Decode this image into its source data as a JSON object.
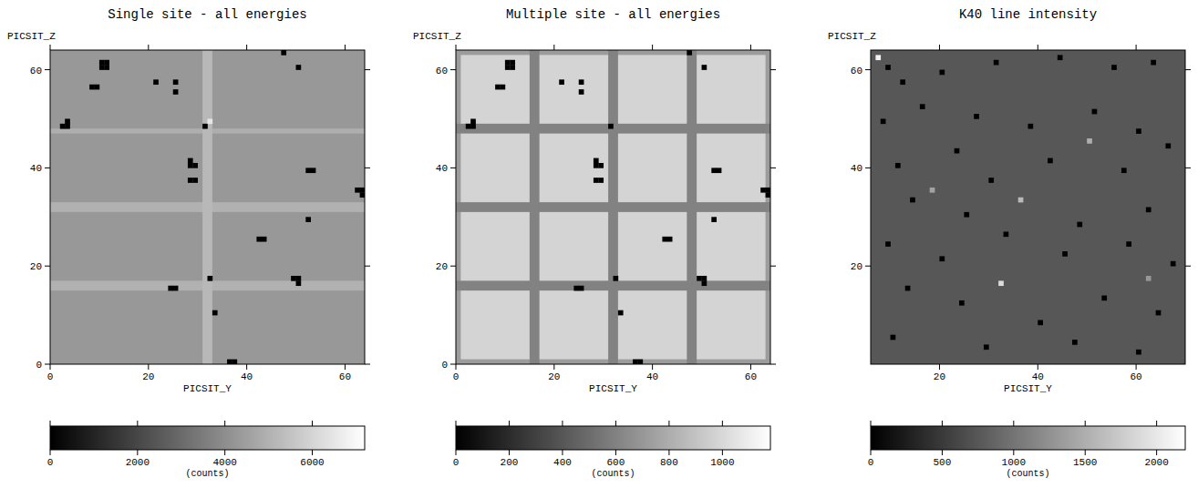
{
  "chart_data": [
    {
      "type": "heatmap",
      "title": "Single site - all energies",
      "x_label": "PICSIT_Y",
      "y_label": "PICSIT_Z",
      "xlim": [
        0,
        64
      ],
      "ylim": [
        0,
        64
      ],
      "xticks": [
        0,
        20,
        40,
        60
      ],
      "yticks": [
        0,
        20,
        40,
        60
      ],
      "color": "gray",
      "colorbar_range": [
        0,
        7200
      ],
      "colorbar_ticks": [
        0,
        2000,
        4000,
        6000
      ],
      "colorbar_label": "(counts)",
      "base": 4300,
      "bands": [
        {
          "axis": "z",
          "from": 15,
          "to": 17,
          "value": 5000
        },
        {
          "axis": "z",
          "from": 31,
          "to": 33,
          "value": 5000
        },
        {
          "axis": "z",
          "from": 47,
          "to": 48,
          "value": 4900
        },
        {
          "axis": "y",
          "from": 31,
          "to": 33,
          "value": 5200
        }
      ],
      "pixels": [
        [
          10,
          60,
          0
        ],
        [
          11,
          60,
          0
        ],
        [
          10,
          61,
          0
        ],
        [
          11,
          61,
          0
        ],
        [
          8,
          56,
          0
        ],
        [
          9,
          56,
          0
        ],
        [
          2,
          48,
          0
        ],
        [
          3,
          48,
          0
        ],
        [
          3,
          49,
          0
        ],
        [
          21,
          57,
          0
        ],
        [
          25,
          57,
          0
        ],
        [
          25,
          55,
          0
        ],
        [
          31,
          48,
          0
        ],
        [
          47,
          63,
          0
        ],
        [
          50,
          60,
          0
        ],
        [
          28,
          40,
          0
        ],
        [
          29,
          40,
          0
        ],
        [
          28,
          41,
          0
        ],
        [
          28,
          37,
          0
        ],
        [
          29,
          37,
          0
        ],
        [
          52,
          39,
          0
        ],
        [
          53,
          39,
          0
        ],
        [
          62,
          35,
          0
        ],
        [
          63,
          35,
          0
        ],
        [
          63,
          34,
          0
        ],
        [
          42,
          25,
          0
        ],
        [
          43,
          25,
          0
        ],
        [
          52,
          29,
          0
        ],
        [
          49,
          17,
          0
        ],
        [
          50,
          17,
          0
        ],
        [
          50,
          16,
          0
        ],
        [
          32,
          17,
          0
        ],
        [
          24,
          15,
          0
        ],
        [
          25,
          15,
          0
        ],
        [
          33,
          10,
          0
        ],
        [
          36,
          0,
          0
        ],
        [
          37,
          0,
          0
        ],
        [
          32,
          49,
          6500
        ]
      ]
    },
    {
      "type": "heatmap",
      "title": "Multiple site - all energies",
      "x_label": "PICSIT_Y",
      "y_label": "PICSIT_Z",
      "xlim": [
        0,
        64
      ],
      "ylim": [
        0,
        64
      ],
      "xticks": [
        0,
        20,
        40,
        60
      ],
      "yticks": [
        0,
        20,
        40,
        60
      ],
      "color": "gray",
      "colorbar_range": [
        0,
        1180
      ],
      "colorbar_ticks": [
        0,
        200,
        400,
        600,
        800,
        1000
      ],
      "colorbar_label": "(counts)",
      "base": 980,
      "bands": [
        {
          "axis": "y",
          "from": 0,
          "to": 1,
          "value": 720
        },
        {
          "axis": "y",
          "from": 63,
          "to": 64,
          "value": 720
        },
        {
          "axis": "z",
          "from": 0,
          "to": 1,
          "value": 720
        },
        {
          "axis": "z",
          "from": 63,
          "to": 64,
          "value": 720
        },
        {
          "axis": "z",
          "from": 15,
          "to": 17,
          "value": 600
        },
        {
          "axis": "z",
          "from": 31,
          "to": 33,
          "value": 600
        },
        {
          "axis": "z",
          "from": 47,
          "to": 49,
          "value": 600
        },
        {
          "axis": "y",
          "from": 15,
          "to": 17,
          "value": 600
        },
        {
          "axis": "y",
          "from": 31,
          "to": 33,
          "value": 600
        },
        {
          "axis": "y",
          "from": 47,
          "to": 49,
          "value": 600
        }
      ],
      "pixels": [
        [
          10,
          60,
          0
        ],
        [
          11,
          60,
          0
        ],
        [
          10,
          61,
          0
        ],
        [
          11,
          61,
          0
        ],
        [
          8,
          56,
          0
        ],
        [
          9,
          56,
          0
        ],
        [
          2,
          48,
          0
        ],
        [
          3,
          48,
          0
        ],
        [
          3,
          49,
          0
        ],
        [
          21,
          57,
          0
        ],
        [
          25,
          57,
          0
        ],
        [
          25,
          55,
          0
        ],
        [
          31,
          48,
          0
        ],
        [
          47,
          63,
          0
        ],
        [
          50,
          60,
          0
        ],
        [
          28,
          40,
          0
        ],
        [
          29,
          40,
          0
        ],
        [
          28,
          41,
          0
        ],
        [
          28,
          37,
          0
        ],
        [
          29,
          37,
          0
        ],
        [
          52,
          39,
          0
        ],
        [
          53,
          39,
          0
        ],
        [
          62,
          35,
          0
        ],
        [
          63,
          35,
          0
        ],
        [
          63,
          34,
          0
        ],
        [
          42,
          25,
          0
        ],
        [
          43,
          25,
          0
        ],
        [
          52,
          29,
          0
        ],
        [
          49,
          17,
          0
        ],
        [
          50,
          17,
          0
        ],
        [
          50,
          16,
          0
        ],
        [
          32,
          17,
          0
        ],
        [
          24,
          15,
          0
        ],
        [
          25,
          15,
          0
        ],
        [
          33,
          10,
          0
        ],
        [
          36,
          0,
          0
        ],
        [
          37,
          0,
          0
        ]
      ]
    },
    {
      "type": "heatmap",
      "title": "K40 line intensity",
      "x_label": "PICSIT_Y",
      "y_label": "PICSIT_Z",
      "xlim": [
        6,
        70
      ],
      "ylim": [
        0,
        64
      ],
      "xticks": [
        20,
        40,
        60
      ],
      "yticks": [
        20,
        40,
        60
      ],
      "color": "gray",
      "colorbar_range": [
        0,
        2200
      ],
      "colorbar_ticks": [
        0,
        500,
        1000,
        1500,
        2000
      ],
      "colorbar_label": "(counts)",
      "base": 750,
      "bands": [],
      "pixels": [
        [
          7,
          62,
          2100
        ],
        [
          9,
          60,
          0
        ],
        [
          12,
          57,
          0
        ],
        [
          20,
          59,
          0
        ],
        [
          31,
          61,
          0
        ],
        [
          44,
          62,
          0
        ],
        [
          55,
          60,
          0
        ],
        [
          63,
          61,
          0
        ],
        [
          8,
          49,
          0
        ],
        [
          16,
          52,
          0
        ],
        [
          27,
          50,
          0
        ],
        [
          38,
          48,
          0
        ],
        [
          51,
          51,
          0
        ],
        [
          60,
          47,
          0
        ],
        [
          11,
          40,
          0
        ],
        [
          23,
          43,
          0
        ],
        [
          30,
          37,
          0
        ],
        [
          42,
          41,
          0
        ],
        [
          57,
          39,
          0
        ],
        [
          66,
          44,
          0
        ],
        [
          14,
          33,
          0
        ],
        [
          25,
          30,
          0
        ],
        [
          36,
          33,
          1600
        ],
        [
          48,
          28,
          0
        ],
        [
          62,
          31,
          0
        ],
        [
          9,
          24,
          0
        ],
        [
          20,
          21,
          0
        ],
        [
          33,
          26,
          0
        ],
        [
          45,
          22,
          0
        ],
        [
          58,
          24,
          0
        ],
        [
          67,
          20,
          0
        ],
        [
          13,
          15,
          0
        ],
        [
          24,
          12,
          0
        ],
        [
          32,
          16,
          1900
        ],
        [
          40,
          8,
          0
        ],
        [
          53,
          13,
          0
        ],
        [
          64,
          10,
          0
        ],
        [
          10,
          5,
          0
        ],
        [
          29,
          3,
          0
        ],
        [
          47,
          4,
          0
        ],
        [
          60,
          2,
          0
        ],
        [
          18,
          35,
          1400
        ],
        [
          50,
          45,
          1500
        ],
        [
          62,
          17,
          1300
        ]
      ]
    }
  ]
}
